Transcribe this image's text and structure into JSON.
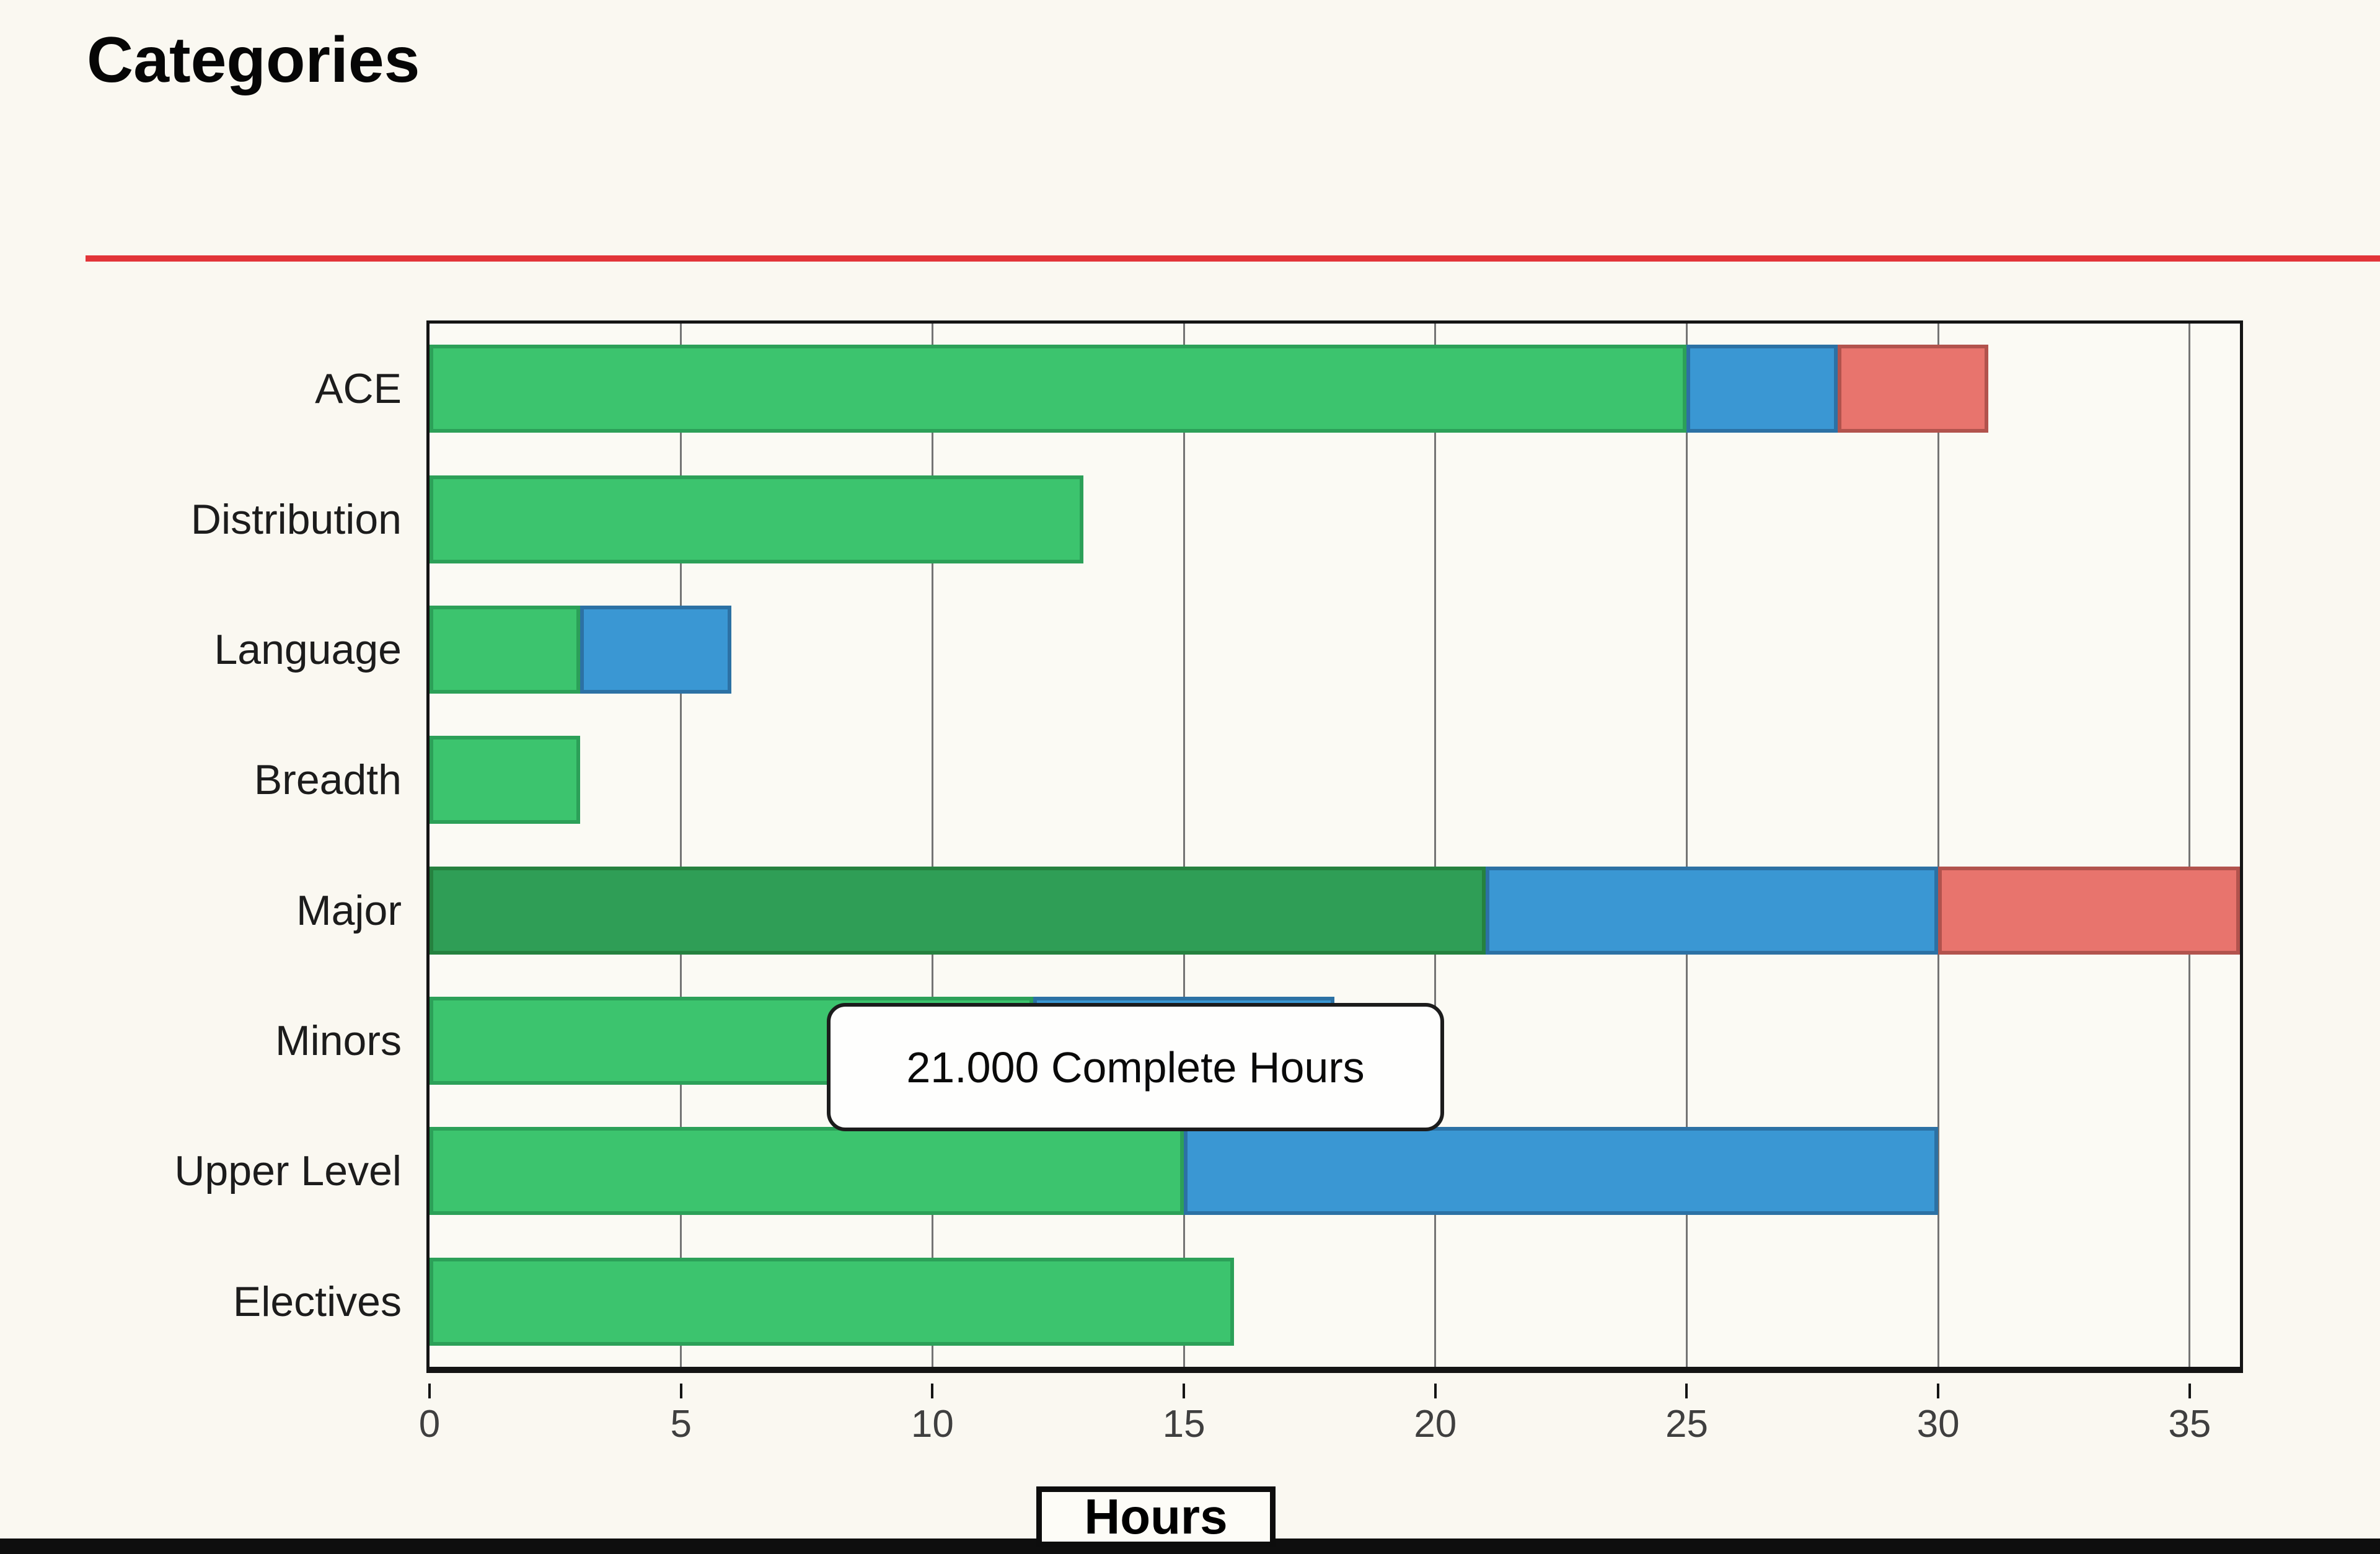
{
  "page": {
    "title": "Categories"
  },
  "chart_data": {
    "type": "bar",
    "orientation": "horizontal",
    "stacked": true,
    "title": "Categories",
    "xlabel": "Hours",
    "ylabel": "",
    "xlim": [
      0,
      36
    ],
    "xticks": [
      0,
      5,
      10,
      15,
      20,
      25,
      30,
      35
    ],
    "grid": true,
    "legend_position": "none",
    "categories": [
      "ACE",
      "Distribution",
      "Language",
      "Breadth",
      "Major",
      "Minors",
      "Upper Level",
      "Electives"
    ],
    "series": [
      {
        "id": "complete",
        "label": "Complete Hours",
        "color": "#3CC46E",
        "border_color": "#2CA058",
        "values": [
          25,
          13,
          3,
          3,
          21,
          12,
          15,
          16
        ]
      },
      {
        "id": "blue-segment",
        "label": "",
        "color": "#3A97D3",
        "border_color": "#2C71A4",
        "values": [
          3,
          0,
          3,
          0,
          9,
          6,
          15,
          0
        ]
      },
      {
        "id": "red-segment",
        "label": "",
        "color": "#E8746D",
        "border_color": "#B2534D",
        "values": [
          3,
          0,
          0,
          0,
          6,
          0,
          0,
          0
        ]
      }
    ],
    "totals": [
      31,
      13,
      6,
      3,
      36,
      18,
      30,
      16
    ],
    "highlight": {
      "category": "Major",
      "series": "complete",
      "color": "#2F9E56",
      "border_color": "#25813F"
    },
    "tooltip": {
      "text": "21.000 Complete Hours"
    }
  },
  "colors": {
    "background": "#FAF8F1",
    "accent_rule": "#E23539",
    "axis": "#141414",
    "gridline": "#747474",
    "bottom_bar": "#0E0E0E"
  }
}
